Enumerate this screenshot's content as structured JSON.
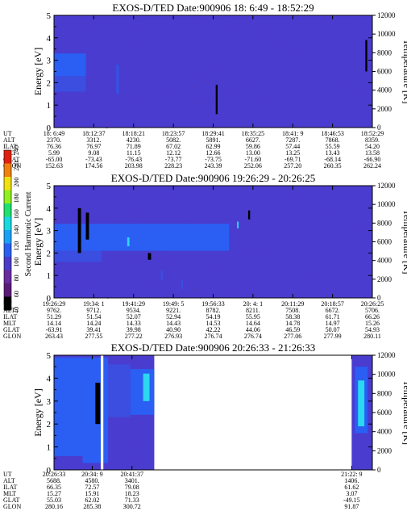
{
  "figure": {
    "colorbar": {
      "label": "Second Harmonic Current",
      "ticks": [
        "40",
        "60",
        "80",
        "100",
        "120",
        "140",
        "160",
        "180",
        "200",
        "220",
        "240"
      ],
      "colors": [
        "#000000",
        "#5a1a78",
        "#6a2aa0",
        "#4a3cc8",
        "#2a5ef0",
        "#1aa0f5",
        "#18d8e0",
        "#20e070",
        "#90f020",
        "#f0e010",
        "#f08010",
        "#e02010"
      ]
    },
    "colors": {
      "background_field": "#4a3ccf",
      "noise": "#5a38b0",
      "band_bright": "#2b5ef2",
      "band_mid": "#3b4ee0",
      "cyan": "#2ad8f0",
      "black_mark": "#000000",
      "gap": "#ffffff"
    }
  },
  "chart_data": [
    {
      "type": "heatmap",
      "title": "EXOS-D/TED   Date:900906  18: 6:49 - 18:52:29",
      "ylabel": "Energy [eV]",
      "ylabel_right": "Temperature [K]",
      "ylim": [
        0,
        5
      ],
      "y_ticks": [
        "0",
        "1",
        "2",
        "3",
        "4",
        "5"
      ],
      "ylim_right": [
        0,
        12000
      ],
      "y_ticks_right": [
        "0",
        "2000",
        "4000",
        "6000",
        "8000",
        "10000",
        "12000"
      ],
      "x_ticks": [
        "18: 6:49",
        "18:12:37",
        "18:18:21",
        "18:23:57",
        "18:29:41",
        "18:35:25",
        "18:41: 9",
        "18:46:53",
        "18:52:29"
      ],
      "rows": [
        {
          "name": "UT",
          "values": [
            "18: 6:49",
            "18:12:37",
            "18:18:21",
            "18:23:57",
            "18:29:41",
            "18:35:25",
            "18:41: 9",
            "18:46:53",
            "18:52:29"
          ]
        },
        {
          "name": "ALT",
          "values": [
            "2370.",
            "3312.",
            "4230.",
            "5082.",
            "5891.",
            "6627.",
            "7287.",
            "7868.",
            "8359."
          ]
        },
        {
          "name": "ILAT",
          "values": [
            "76.36",
            "76.97",
            "71.89",
            "67.02",
            "62.99",
            "59.86",
            "57.44",
            "55.59",
            "54.20"
          ]
        },
        {
          "name": "MLT",
          "values": [
            "5.99",
            "9.08",
            "11.15",
            "12.12",
            "12.66",
            "13.00",
            "13.25",
            "13.43",
            "13.58"
          ]
        },
        {
          "name": "GLAT",
          "values": [
            "-65.00",
            "-73.43",
            "-76.43",
            "-73.77",
            "-73.75",
            "-71.60",
            "-69.71",
            "-68.14",
            "-66.90"
          ]
        },
        {
          "name": "GLON",
          "values": [
            "152.63",
            "174.56",
            "203.98",
            "228.23",
            "243.39",
            "252.06",
            "257.20",
            "260.35",
            "262.24"
          ]
        }
      ],
      "features": [
        {
          "x0": 0.0,
          "x1": 0.1,
          "y0": 2.3,
          "y1": 3.3,
          "level": "bright"
        },
        {
          "x0": 0.0,
          "x1": 0.1,
          "y0": 1.6,
          "y1": 2.3,
          "level": "mid"
        },
        {
          "x0": 0.195,
          "x1": 0.205,
          "y0": 1.5,
          "y1": 2.8,
          "level": "mid"
        },
        {
          "x0": 0.508,
          "x1": 0.514,
          "y0": 0.6,
          "y1": 1.9,
          "level": "black"
        },
        {
          "x0": 0.978,
          "x1": 0.984,
          "y0": 2.5,
          "y1": 3.9,
          "level": "black"
        }
      ]
    },
    {
      "type": "heatmap",
      "title": "EXOS-D/TED   Date:900906  19:26:29 - 20:26:25",
      "ylabel": "Energy [eV]",
      "ylabel_right": "Temperature [K]",
      "ylim": [
        0,
        5
      ],
      "y_ticks": [
        "0",
        "1",
        "2",
        "3",
        "4",
        "5"
      ],
      "ylim_right": [
        0,
        12000
      ],
      "y_ticks_right": [
        "0",
        "2000",
        "4000",
        "6000",
        "8000",
        "10000",
        "12000"
      ],
      "x_ticks": [
        "19:26:29",
        "19:34: 1",
        "19:41:29",
        "19:49: 5",
        "19:56:33",
        "20: 4: 1",
        "20:11:29",
        "20:18:57",
        "20:26:25"
      ],
      "rows": [
        {
          "name": "UT",
          "values": [
            "19:26:29",
            "19:34: 1",
            "19:41:29",
            "19:49: 5",
            "19:56:33",
            "20: 4: 1",
            "20:11:29",
            "20:18:57",
            "20:26:25"
          ]
        },
        {
          "name": "ALT",
          "values": [
            "9762.",
            "9712.",
            "9534.",
            "9221.",
            "8782.",
            "8211.",
            "7508.",
            "6672.",
            "5706."
          ]
        },
        {
          "name": "ILAT",
          "values": [
            "51.29",
            "51.54",
            "52.07",
            "52.94",
            "54.19",
            "55.95",
            "58.38",
            "61.71",
            "66.26"
          ]
        },
        {
          "name": "MLT",
          "values": [
            "14.14",
            "14.24",
            "14.33",
            "14.43",
            "14.53",
            "14.64",
            "14.78",
            "14.97",
            "15.26"
          ]
        },
        {
          "name": "GLAT",
          "values": [
            "-63.91",
            "39.41",
            "39.98",
            "40.90",
            "42.22",
            "44.06",
            "46.59",
            "50.07",
            "54.93"
          ]
        },
        {
          "name": "GLON",
          "values": [
            "263.43",
            "277.55",
            "277.22",
            "276.93",
            "276.74",
            "276.74",
            "277.06",
            "277.99",
            "280.11"
          ]
        }
      ],
      "features": [
        {
          "x0": 0.0,
          "x1": 0.55,
          "y0": 2.1,
          "y1": 3.3,
          "level": "bright"
        },
        {
          "x0": 0.0,
          "x1": 0.15,
          "y0": 1.6,
          "y1": 2.1,
          "level": "mid"
        },
        {
          "x0": 0.075,
          "x1": 0.085,
          "y0": 2.0,
          "y1": 4.0,
          "level": "black"
        },
        {
          "x0": 0.1,
          "x1": 0.11,
          "y0": 2.6,
          "y1": 3.8,
          "level": "black"
        },
        {
          "x0": 0.23,
          "x1": 0.237,
          "y0": 2.3,
          "y1": 2.7,
          "level": "cyan"
        },
        {
          "x0": 0.295,
          "x1": 0.305,
          "y0": 1.7,
          "y1": 2.0,
          "level": "black"
        },
        {
          "x0": 0.335,
          "x1": 0.342,
          "y0": 0.8,
          "y1": 1.2,
          "level": "mid"
        },
        {
          "x0": 0.4,
          "x1": 0.405,
          "y0": 0.4,
          "y1": 0.8,
          "level": "mid"
        },
        {
          "x0": 0.61,
          "x1": 0.616,
          "y0": 3.5,
          "y1": 3.9,
          "level": "black"
        },
        {
          "x0": 0.575,
          "x1": 0.58,
          "y0": 3.1,
          "y1": 3.4,
          "level": "cyan"
        }
      ]
    },
    {
      "type": "heatmap",
      "title": "EXOS-D/TED   Date:900906  20:26:33 - 21:26:33",
      "ylabel": "Energy [eV]",
      "ylabel_right": "Temperature [K]",
      "ylim": [
        0,
        5
      ],
      "y_ticks": [
        "0",
        "1",
        "2",
        "3",
        "4",
        "5"
      ],
      "ylim_right": [
        0,
        12000
      ],
      "y_ticks_right": [
        "0",
        "2000",
        "4000",
        "6000",
        "8000",
        "10000",
        "12000"
      ],
      "x_ticks": [
        "20:26:33",
        "20:34: 9",
        "20:41:37",
        "21:22: 9"
      ],
      "rows": [
        {
          "name": "UT",
          "values": [
            "20:26:33",
            "20:34: 9",
            "20:41:37",
            "21:22: 9"
          ]
        },
        {
          "name": "ALT",
          "values": [
            "5688.",
            "4580.",
            "3401.",
            "1406."
          ]
        },
        {
          "name": "ILAT",
          "values": [
            "66.35",
            "72.57",
            "79.08",
            "61.62"
          ]
        },
        {
          "name": "MLT",
          "values": [
            "15.27",
            "15.91",
            "18.23",
            "3.07"
          ]
        },
        {
          "name": "GLAT",
          "values": [
            "55.03",
            "62.02",
            "71.33",
            "-49.15"
          ]
        },
        {
          "name": "GLON",
          "values": [
            "280.16",
            "285.38",
            "300.72",
            "91.87"
          ]
        }
      ],
      "tick_positions": [
        0.0,
        0.12,
        0.245,
        0.935
      ],
      "data_ranges": [
        [
          0.0,
          0.315
        ],
        [
          0.935,
          1.0
        ]
      ],
      "features": [
        {
          "x0": 0.0,
          "x1": 0.09,
          "y0": 0.6,
          "y1": 4.9,
          "level": "bright"
        },
        {
          "x0": 0.09,
          "x1": 0.17,
          "y0": 0.3,
          "y1": 4.9,
          "level": "bright"
        },
        {
          "x0": 0.13,
          "x1": 0.145,
          "y0": 2.0,
          "y1": 3.8,
          "level": "black"
        },
        {
          "x0": 0.147,
          "x1": 0.155,
          "y0": 0.0,
          "y1": 5.0,
          "level": "gap"
        },
        {
          "x0": 0.17,
          "x1": 0.24,
          "y0": 2.3,
          "y1": 4.6,
          "level": "mid"
        },
        {
          "x0": 0.24,
          "x1": 0.315,
          "y0": 2.4,
          "y1": 4.4,
          "level": "bright"
        },
        {
          "x0": 0.28,
          "x1": 0.3,
          "y0": 3.0,
          "y1": 4.2,
          "level": "cyan"
        },
        {
          "x0": 0.945,
          "x1": 0.985,
          "y0": 1.6,
          "y1": 4.5,
          "level": "bright"
        },
        {
          "x0": 0.955,
          "x1": 0.975,
          "y0": 1.9,
          "y1": 3.9,
          "level": "cyan"
        }
      ]
    }
  ]
}
